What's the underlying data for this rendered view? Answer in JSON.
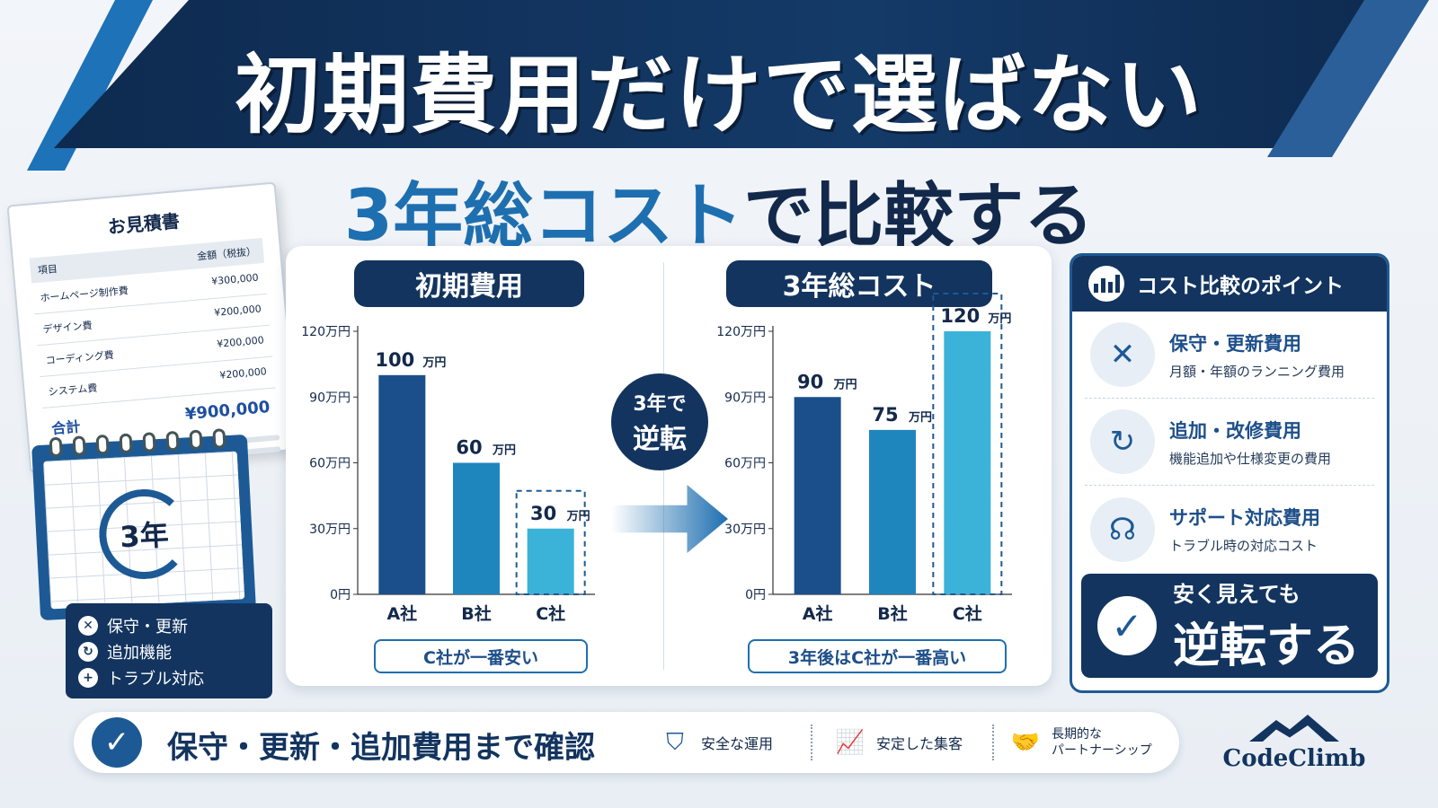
{
  "header": {
    "title": "初期費用だけで選ばない",
    "subtitle_highlight": "3年総コスト",
    "subtitle_rest": "で比較する"
  },
  "estimate": {
    "title": "お見積書",
    "col_item": "項目",
    "col_amount": "金額（税抜）",
    "rows": [
      {
        "item": "ホームページ制作費",
        "amount": "¥300,000"
      },
      {
        "item": "デザイン費",
        "amount": "¥200,000"
      },
      {
        "item": "コーディング費",
        "amount": "¥200,000"
      },
      {
        "item": "システム費",
        "amount": "¥200,000"
      }
    ],
    "total_label": "合計",
    "total_value": "¥900,000"
  },
  "calendar": {
    "label": "3年"
  },
  "left_list": {
    "items": [
      {
        "icon": "wrench-icon",
        "label": "保守・更新"
      },
      {
        "icon": "refresh-icon",
        "label": "追加機能"
      },
      {
        "icon": "plus-icon",
        "label": "トラブル対応"
      }
    ]
  },
  "badge": {
    "line1": "3年で",
    "line2": "逆転"
  },
  "chart_data": [
    {
      "type": "bar",
      "title": "初期費用",
      "categories": [
        "A社",
        "B社",
        "C社"
      ],
      "values": [
        100,
        60,
        30
      ],
      "value_labels": [
        "100",
        "60",
        "30"
      ],
      "unit": "万円",
      "yticks": [
        "0円",
        "30万円",
        "60万円",
        "90万円",
        "120万円"
      ],
      "ylim": [
        0,
        120
      ],
      "highlight": "C社",
      "note": "C社が一番安い"
    },
    {
      "type": "bar",
      "title": "3年総コスト",
      "categories": [
        "A社",
        "B社",
        "C社"
      ],
      "values": [
        90,
        75,
        120
      ],
      "value_labels": [
        "90",
        "75",
        "120"
      ],
      "unit": "万円",
      "yticks": [
        "0円",
        "30万円",
        "60万円",
        "90万円",
        "120万円"
      ],
      "ylim": [
        0,
        120
      ],
      "highlight": "C社",
      "note": "3年後はC社が一番高い"
    }
  ],
  "colors": {
    "bar_a": "#1a4f8b",
    "bar_b": "#1f86bd",
    "bar_c": "#3bb2d8",
    "navy": "#12345f"
  },
  "points": {
    "heading": "コスト比較のポイント",
    "items": [
      {
        "icon": "tools-icon",
        "title": "保守・更新費用",
        "desc": "月額・年額のランニング費用"
      },
      {
        "icon": "refresh-icon",
        "title": "追加・改修費用",
        "desc": "機能追加や仕様変更の費用"
      },
      {
        "icon": "headset-icon",
        "title": "サポート対応費用",
        "desc": "トラブル時の対応コスト"
      }
    ],
    "cta_line1": "安く見えても",
    "cta_line2": "逆転する"
  },
  "bottom": {
    "text": "保守・更新・追加費用まで確認",
    "features": [
      {
        "icon": "shield-icon",
        "label": "安全な運用"
      },
      {
        "icon": "growth-chart-icon",
        "label": "安定した集客"
      },
      {
        "icon": "handshake-icon",
        "label": "長期的な\nパートナーシップ"
      }
    ]
  },
  "logo": {
    "text": "CodeClimb"
  }
}
